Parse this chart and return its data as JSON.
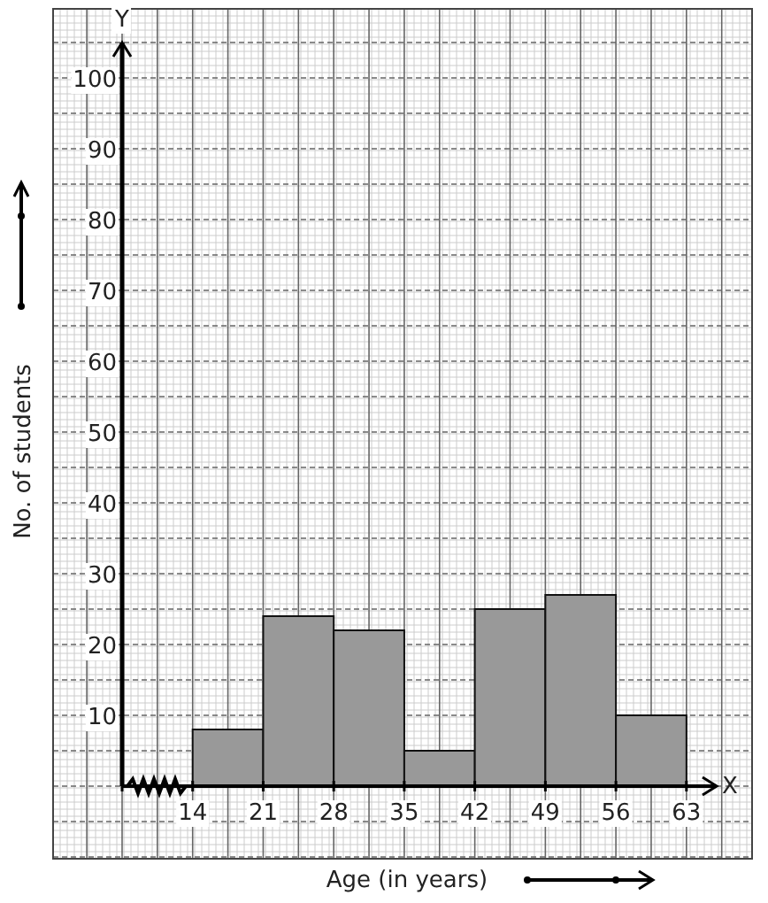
{
  "chart_data": {
    "type": "histogram",
    "xlabel": "Age (in years)",
    "ylabel": "No. of students",
    "color": "#999999",
    "bins": [
      14,
      21,
      28,
      35,
      42,
      49,
      56,
      63
    ],
    "values": [
      8,
      24,
      22,
      5,
      25,
      27,
      10
    ],
    "xlim": [
      7,
      66
    ],
    "ylim": [
      0,
      105
    ],
    "xticks": [
      14,
      21,
      28,
      35,
      42,
      49,
      56,
      63
    ],
    "yticks": [
      10,
      20,
      30,
      40,
      50,
      60,
      70,
      80,
      90,
      100
    ],
    "grid": true,
    "annotations": [
      "X",
      "Y"
    ]
  }
}
